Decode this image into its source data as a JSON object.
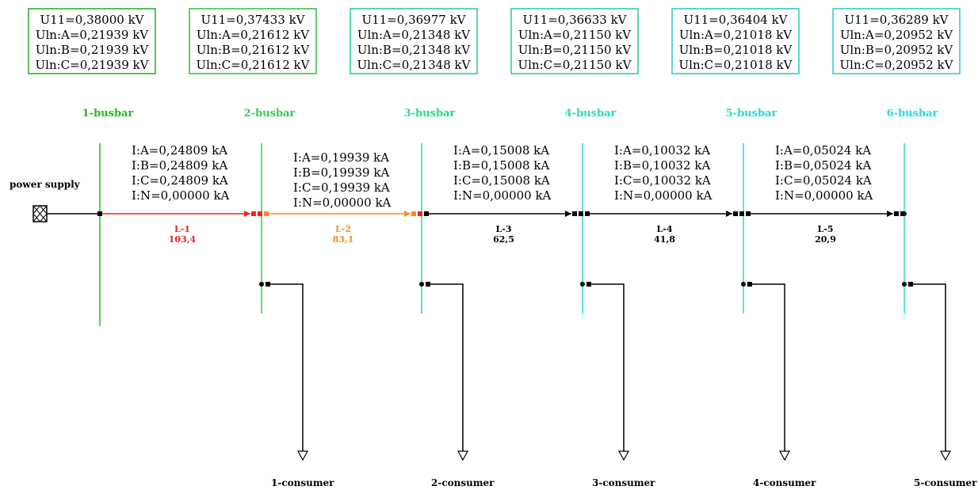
{
  "power_supply": {
    "label": "power supply"
  },
  "colors": {
    "green_dark": "#22bb22",
    "green": "#33cc66",
    "cyan_green": "#22ddaa",
    "cyan": "#22dddd",
    "red": "#ee2222",
    "orange": "#ff8822",
    "black": "#000000"
  },
  "busbars": [
    {
      "label": "1-busbar",
      "color": "#22bb22",
      "box_color": "#22aa22",
      "voltage": [
        "U11=0,38000 kV",
        "Uln:A=0,21939 kV",
        "Uln:B=0,21939 kV",
        "Uln:C=0,21939 kV"
      ]
    },
    {
      "label": "2-busbar",
      "color": "#33cc55",
      "box_color": "#33bb44",
      "voltage": [
        "U11=0,37433 kV",
        "Uln:A=0,21612 kV",
        "Uln:B=0,21612 kV",
        "Uln:C=0,21612 kV"
      ]
    },
    {
      "label": "3-busbar",
      "color": "#22dd88",
      "box_color": "#22cc88",
      "voltage": [
        "U11=0,36977 kV",
        "Uln:A=0,21348 kV",
        "Uln:B=0,21348 kV",
        "Uln:C=0,21348 kV"
      ]
    },
    {
      "label": "4-busbar",
      "color": "#22ddbb",
      "box_color": "#22ccaa",
      "voltage": [
        "U11=0,36633 kV",
        "Uln:A=0,21150 kV",
        "Uln:B=0,21150 kV",
        "Uln:C=0,21150 kV"
      ]
    },
    {
      "label": "5-busbar",
      "color": "#22ddcc",
      "box_color": "#22ccbb",
      "voltage": [
        "U11=0,36404 kV",
        "Uln:A=0,21018 kV",
        "Uln:B=0,21018 kV",
        "Uln:C=0,21018 kV"
      ]
    },
    {
      "label": "6-busbar",
      "color": "#22dddd",
      "box_color": "#22cccc",
      "voltage": [
        "U11=0,36289 kV",
        "Uln:A=0,20952 kV",
        "Uln:B=0,20952 kV",
        "Uln:C=0,20952 kV"
      ]
    }
  ],
  "lines": [
    {
      "name": "L-1",
      "value": "103,4",
      "color": "#ee2222",
      "currents": [
        "I:A=0,24809 kA",
        "I:B=0,24809 kA",
        "I:C=0,24809 kA",
        "I:N=0,00000 kA"
      ]
    },
    {
      "name": "L-2",
      "value": "83,1",
      "color": "#ff8822",
      "currents": [
        "I:A=0,19939 kA",
        "I:B=0,19939 kA",
        "I:C=0,19939 kA",
        "I:N=0,00000 kA"
      ]
    },
    {
      "name": "L-3",
      "value": "62,5",
      "color": "#000000",
      "currents": [
        "I:A=0,15008 kA",
        "I:B=0,15008 kA",
        "I:C=0,15008 kA",
        "I:N=0,00000 kA"
      ]
    },
    {
      "name": "L-4",
      "value": "41,8",
      "color": "#000000",
      "currents": [
        "I:A=0,10032 kA",
        "I:B=0,10032 kA",
        "I:C=0,10032 kA",
        "I:N=0,00000 kA"
      ]
    },
    {
      "name": "L-5",
      "value": "20,9",
      "color": "#000000",
      "currents": [
        "I:A=0,05024 kA",
        "I:B=0,05024 kA",
        "I:C=0,05024 kA",
        "I:N=0,00000 kA"
      ]
    }
  ],
  "consumers": [
    {
      "label": "1-consumer"
    },
    {
      "label": "2-consumer"
    },
    {
      "label": "3-consumer"
    },
    {
      "label": "4-consumer"
    },
    {
      "label": "5-consumer"
    }
  ]
}
